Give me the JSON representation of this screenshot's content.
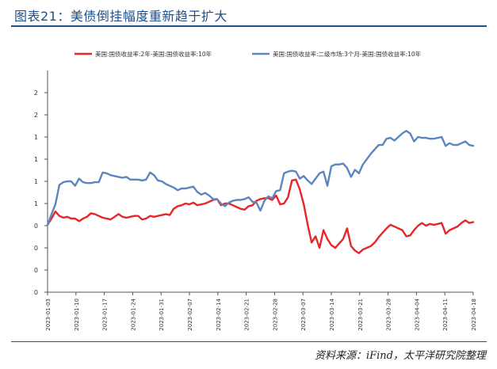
{
  "header": {
    "title": "图表21：美债倒挂幅度重新趋于扩大"
  },
  "source_note": "资料来源：iFind，太平洋研究院整理",
  "chart_data": {
    "type": "line",
    "title": "",
    "xlabel": "",
    "ylabel": "",
    "ylim": [
      0,
      2.5
    ],
    "y_ticks": [
      {
        "value": 0.0,
        "label": "0"
      },
      {
        "value": 0.25,
        "label": "0"
      },
      {
        "value": 0.5,
        "label": "0"
      },
      {
        "value": 0.75,
        "label": "0"
      },
      {
        "value": 1.0,
        "label": "1"
      },
      {
        "value": 1.25,
        "label": "1"
      },
      {
        "value": 1.5,
        "label": "1"
      },
      {
        "value": 1.75,
        "label": "1"
      },
      {
        "value": 2.0,
        "label": "2"
      },
      {
        "value": 2.25,
        "label": "2"
      }
    ],
    "x_tick_labels": [
      "2023-01-03",
      "2023-01-10",
      "2023-01-17",
      "2023-01-24",
      "2023-01-31",
      "2023-02-07",
      "2023-02-14",
      "2023-02-21",
      "2023-02-28",
      "2023-03-07",
      "2023-03-14",
      "2023-03-21",
      "2023-03-28",
      "2023-04-04",
      "2023-04-11",
      "2023-04-18"
    ],
    "x_range": [
      0,
      108
    ],
    "grid": false,
    "legend_position": "top",
    "series": [
      {
        "name": "美国:国债收益率:2年-美国:国债收益率:10年",
        "color": "#e8262a",
        "x": [
          0,
          1,
          2,
          3,
          4,
          5,
          6,
          7,
          8,
          9,
          10,
          11,
          12,
          13,
          14,
          15,
          16,
          17,
          18,
          19,
          20,
          21,
          22,
          23,
          24,
          25,
          26,
          27,
          28,
          29,
          30,
          31,
          32,
          33,
          34,
          35,
          36,
          37,
          38,
          39,
          40,
          41,
          42,
          43,
          44,
          45,
          46,
          47,
          48,
          49,
          50,
          51,
          52,
          53,
          54,
          55,
          56,
          57,
          58,
          59,
          60,
          61,
          62,
          63,
          64,
          65,
          66,
          67,
          68,
          69,
          70,
          71,
          72,
          73,
          74,
          75,
          76,
          77,
          78,
          79,
          80,
          81,
          82,
          83,
          84,
          85,
          86,
          87,
          88,
          89,
          90,
          91,
          92,
          93,
          94,
          95,
          96,
          97,
          98,
          99,
          100,
          101,
          102,
          103,
          104,
          105,
          106,
          107,
          108
        ],
        "values": [
          0.76,
          0.83,
          0.91,
          0.86,
          0.84,
          0.85,
          0.83,
          0.83,
          0.8,
          0.83,
          0.85,
          0.89,
          0.88,
          0.86,
          0.84,
          0.83,
          0.82,
          0.85,
          0.88,
          0.85,
          0.84,
          0.85,
          0.86,
          0.86,
          0.82,
          0.83,
          0.86,
          0.85,
          0.86,
          0.87,
          0.88,
          0.87,
          0.94,
          0.97,
          0.98,
          1.0,
          0.99,
          1.01,
          0.98,
          0.99,
          1.0,
          1.02,
          1.04,
          1.05,
          0.98,
          1.0,
          1.0,
          0.98,
          0.96,
          0.94,
          0.93,
          0.97,
          0.98,
          1.03,
          1.05,
          1.06,
          1.06,
          1.04,
          1.09,
          0.99,
          1.0,
          1.07,
          1.26,
          1.27,
          1.16,
          0.99,
          0.76,
          0.56,
          0.63,
          0.5,
          0.7,
          0.6,
          0.53,
          0.5,
          0.55,
          0.6,
          0.72,
          0.52,
          0.47,
          0.44,
          0.48,
          0.5,
          0.52,
          0.56,
          0.62,
          0.67,
          0.72,
          0.76,
          0.74,
          0.72,
          0.7,
          0.63,
          0.64,
          0.7,
          0.75,
          0.78,
          0.75,
          0.77,
          0.76,
          0.77,
          0.78,
          0.66,
          0.7,
          0.72,
          0.74,
          0.78,
          0.81,
          0.78,
          0.79
        ]
      },
      {
        "name": "美国:国债收益率:二级市场:3个月-美国:国债收益率:10年",
        "color": "#5b86c0",
        "x": [
          0,
          1,
          2,
          3,
          4,
          5,
          6,
          7,
          8,
          9,
          10,
          11,
          12,
          13,
          14,
          15,
          16,
          17,
          18,
          19,
          20,
          21,
          22,
          23,
          24,
          25,
          26,
          27,
          28,
          29,
          30,
          31,
          32,
          33,
          34,
          35,
          36,
          37,
          38,
          39,
          40,
          41,
          42,
          43,
          44,
          45,
          46,
          47,
          48,
          49,
          50,
          51,
          52,
          53,
          54,
          55,
          56,
          57,
          58,
          59,
          60,
          61,
          62,
          63,
          64,
          65,
          66,
          67,
          68,
          69,
          70,
          71,
          72,
          73,
          74,
          75,
          76,
          77,
          78,
          79,
          80,
          81,
          82,
          83,
          84,
          85,
          86,
          87,
          88,
          89,
          90,
          91,
          92,
          93,
          94,
          95,
          96,
          97,
          98,
          99,
          100,
          101,
          102,
          103,
          104,
          105,
          106,
          107,
          108
        ],
        "values": [
          0.76,
          0.88,
          0.99,
          1.21,
          1.24,
          1.25,
          1.25,
          1.2,
          1.28,
          1.24,
          1.23,
          1.23,
          1.24,
          1.24,
          1.35,
          1.34,
          1.32,
          1.31,
          1.3,
          1.29,
          1.3,
          1.27,
          1.27,
          1.27,
          1.26,
          1.27,
          1.35,
          1.32,
          1.26,
          1.25,
          1.22,
          1.2,
          1.18,
          1.15,
          1.17,
          1.17,
          1.18,
          1.19,
          1.13,
          1.1,
          1.12,
          1.09,
          1.05,
          1.05,
          1.0,
          0.97,
          1.01,
          1.03,
          1.04,
          1.04,
          1.05,
          1.07,
          1.02,
          1.01,
          0.92,
          1.03,
          1.08,
          1.06,
          1.14,
          1.15,
          1.34,
          1.36,
          1.37,
          1.36,
          1.28,
          1.31,
          1.26,
          1.22,
          1.28,
          1.34,
          1.36,
          1.2,
          1.42,
          1.44,
          1.44,
          1.45,
          1.4,
          1.3,
          1.38,
          1.34,
          1.44,
          1.5,
          1.56,
          1.61,
          1.66,
          1.66,
          1.73,
          1.74,
          1.71,
          1.75,
          1.79,
          1.82,
          1.79,
          1.7,
          1.75,
          1.74,
          1.74,
          1.73,
          1.73,
          1.74,
          1.75,
          1.65,
          1.68,
          1.66,
          1.66,
          1.68,
          1.7,
          1.66,
          1.65
        ]
      }
    ]
  }
}
